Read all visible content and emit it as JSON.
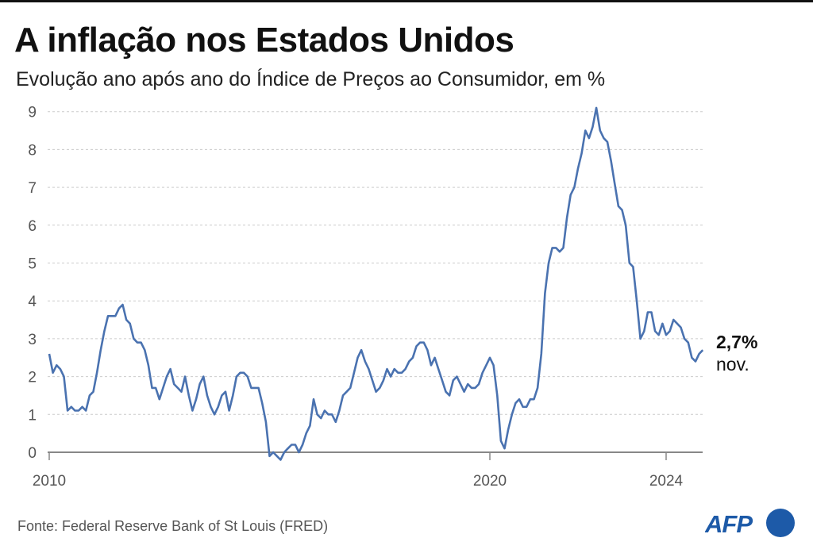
{
  "title": "A inflação nos Estados Unidos",
  "subtitle": "Evolução ano após ano do Índice de Preços ao Consumidor, em %",
  "source": "Fonte:  Federal Reserve Bank of St Louis (FRED)",
  "logo_text": "AFP",
  "colors": {
    "line": "#4a72b0",
    "brand": "#1d5aa8",
    "grid": "#cccccc"
  },
  "chart_data": {
    "type": "line",
    "title": "A inflação nos Estados Unidos",
    "xlabel": "",
    "ylabel": "%",
    "x_start": "2010-01",
    "frequency": "monthly",
    "xlim": [
      2010,
      2024.9
    ],
    "ylim": [
      0,
      9
    ],
    "yticks": [
      "0",
      "1",
      "2",
      "3",
      "4",
      "5",
      "6",
      "7",
      "8",
      "9"
    ],
    "xticks": [
      {
        "label": "2010",
        "value": 2010
      },
      {
        "label": "2020",
        "value": 2020
      },
      {
        "label": "2024",
        "value": 2024
      }
    ],
    "grid": true,
    "end_label": {
      "value": "2,7%",
      "month": "nov."
    },
    "series": [
      {
        "name": "CPI YoY",
        "values": [
          2.6,
          2.1,
          2.3,
          2.2,
          2.0,
          1.1,
          1.2,
          1.1,
          1.1,
          1.2,
          1.1,
          1.5,
          1.6,
          2.1,
          2.7,
          3.2,
          3.6,
          3.6,
          3.6,
          3.8,
          3.9,
          3.5,
          3.4,
          3.0,
          2.9,
          2.9,
          2.7,
          2.3,
          1.7,
          1.7,
          1.4,
          1.7,
          2.0,
          2.2,
          1.8,
          1.7,
          1.6,
          2.0,
          1.5,
          1.1,
          1.4,
          1.8,
          2.0,
          1.5,
          1.2,
          1.0,
          1.2,
          1.5,
          1.6,
          1.1,
          1.5,
          2.0,
          2.1,
          2.1,
          2.0,
          1.7,
          1.7,
          1.7,
          1.3,
          0.8,
          -0.1,
          0.0,
          -0.1,
          -0.2,
          0.0,
          0.1,
          0.2,
          0.2,
          0.0,
          0.2,
          0.5,
          0.7,
          1.4,
          1.0,
          0.9,
          1.1,
          1.0,
          1.0,
          0.8,
          1.1,
          1.5,
          1.6,
          1.7,
          2.1,
          2.5,
          2.7,
          2.4,
          2.2,
          1.9,
          1.6,
          1.7,
          1.9,
          2.2,
          2.0,
          2.2,
          2.1,
          2.1,
          2.2,
          2.4,
          2.5,
          2.8,
          2.9,
          2.9,
          2.7,
          2.3,
          2.5,
          2.2,
          1.9,
          1.6,
          1.5,
          1.9,
          2.0,
          1.8,
          1.6,
          1.8,
          1.7,
          1.7,
          1.8,
          2.1,
          2.3,
          2.5,
          2.3,
          1.5,
          0.3,
          0.1,
          0.6,
          1.0,
          1.3,
          1.4,
          1.2,
          1.2,
          1.4,
          1.4,
          1.7,
          2.6,
          4.2,
          5.0,
          5.4,
          5.4,
          5.3,
          5.4,
          6.2,
          6.8,
          7.0,
          7.5,
          7.9,
          8.5,
          8.3,
          8.6,
          9.1,
          8.5,
          8.3,
          8.2,
          7.7,
          7.1,
          6.5,
          6.4,
          6.0,
          5.0,
          4.9,
          4.0,
          3.0,
          3.2,
          3.7,
          3.7,
          3.2,
          3.1,
          3.4,
          3.1,
          3.2,
          3.5,
          3.4,
          3.3,
          3.0,
          2.9,
          2.5,
          2.4,
          2.6,
          2.7
        ]
      }
    ]
  }
}
